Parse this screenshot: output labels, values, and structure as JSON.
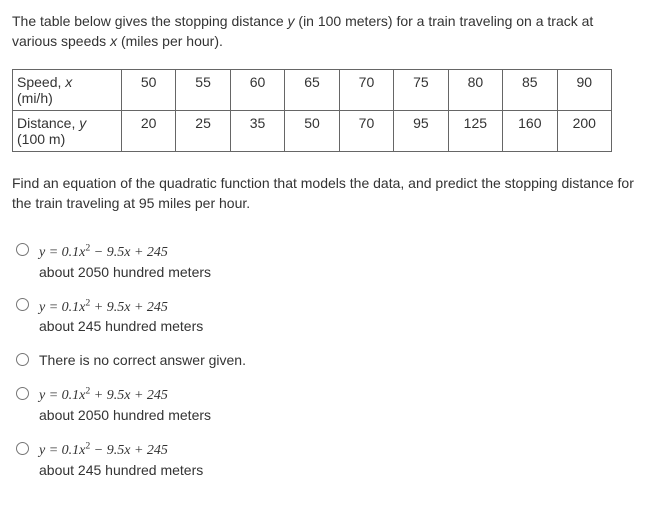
{
  "question": {
    "intro_part1": "The table below gives the stopping distance ",
    "intro_var_y": "y",
    "intro_part2": " (in 100 meters) for a train traveling on a track at various speeds ",
    "intro_var_x": "x",
    "intro_part3": " (miles per hour)."
  },
  "table": {
    "row1_label_main": "Speed, ",
    "row1_label_var": "x",
    "row1_label_unit": "(mi/h)",
    "row1_values": [
      "50",
      "55",
      "60",
      "65",
      "70",
      "75",
      "80",
      "85",
      "90"
    ],
    "row2_label_main": "Distance, ",
    "row2_label_var": "y",
    "row2_label_unit": "(100 m)",
    "row2_values": [
      "20",
      "25",
      "35",
      "50",
      "70",
      "95",
      "125",
      "160",
      "200"
    ]
  },
  "instruction": "Find an equation of the quadratic function that models the data, and predict the stopping distance for the train traveling at 95  miles per hour.",
  "options": {
    "opt1": {
      "eq_prefix": "y = 0.1x",
      "eq_exp": "2",
      "eq_suffix": " − 9.5x + 245",
      "answer": "about 2050 hundred meters"
    },
    "opt2": {
      "eq_prefix": "y = 0.1x",
      "eq_exp": "2",
      "eq_suffix": " + 9.5x + 245",
      "answer": "about 245 hundred meters"
    },
    "opt3": {
      "text": "There is no correct answer given."
    },
    "opt4": {
      "eq_prefix": "y = 0.1x",
      "eq_exp": "2",
      "eq_suffix": " + 9.5x + 245",
      "answer": "about 2050 hundred meters"
    },
    "opt5": {
      "eq_prefix": "y = 0.1x",
      "eq_exp": "2",
      "eq_suffix": " − 9.5x + 245",
      "answer": "about 245 hundred meters"
    }
  }
}
